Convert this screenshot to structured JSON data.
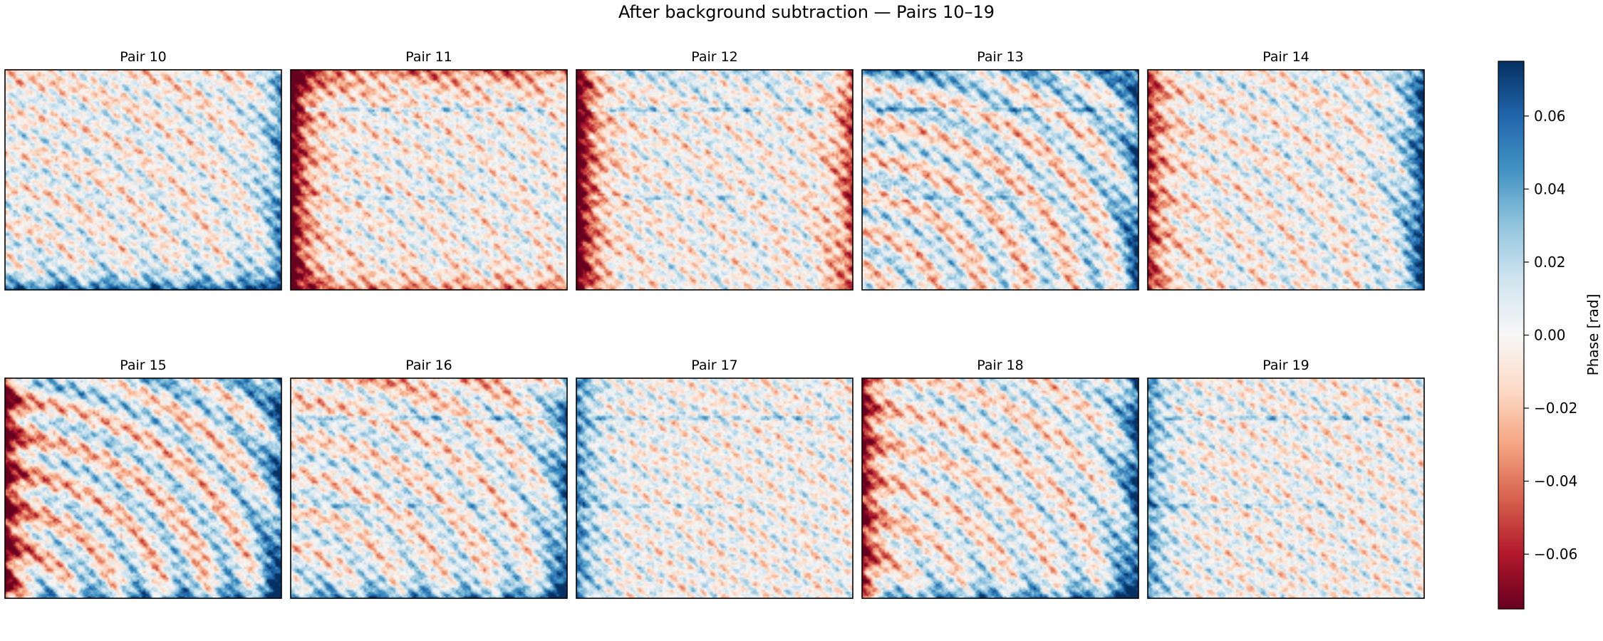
{
  "figure": {
    "title": "After background subtraction — Pairs 10–19"
  },
  "chart_data": {
    "type": "heatmap",
    "title": "After background subtraction — Pairs 10–19",
    "grid": false,
    "layout": "2 rows x 5 columns",
    "colormap": {
      "name": "RdBu",
      "low_color": "#67001f",
      "mid_color": "#f7f7f7",
      "high_color": "#053061"
    },
    "colorbar": {
      "label": "Phase [rad]",
      "range": [
        -0.075,
        0.075
      ],
      "ticks": [
        0.06,
        0.04,
        0.02,
        0.0,
        -0.02,
        -0.04,
        -0.06
      ],
      "tick_labels": [
        "0.06",
        "0.04",
        "0.02",
        "0.00",
        "−0.02",
        "−0.04",
        "−0.06"
      ]
    },
    "panels": [
      {
        "title": "Pair 10",
        "left_edge": 0.0,
        "top_edge": -0.01,
        "right_edge": 0.045,
        "bottom_edge": 0.06,
        "tilt": 0.02,
        "stripes": false
      },
      {
        "title": "Pair 11",
        "left_edge": -0.09,
        "top_edge": -0.04,
        "right_edge": 0.0,
        "bottom_edge": -0.035,
        "tilt": 0.015,
        "stripes": true
      },
      {
        "title": "Pair 12",
        "left_edge": -0.1,
        "top_edge": 0.015,
        "right_edge": -0.055,
        "bottom_edge": 0.0,
        "tilt": 0.015,
        "stripes": true
      },
      {
        "title": "Pair 13",
        "left_edge": 0.0,
        "top_edge": 0.03,
        "right_edge": 0.055,
        "bottom_edge": 0.0,
        "tilt": 0.04,
        "stripes": true
      },
      {
        "title": "Pair 14",
        "left_edge": -0.06,
        "top_edge": 0.0,
        "right_edge": 0.075,
        "bottom_edge": 0.0,
        "tilt": 0.02,
        "stripes": false
      },
      {
        "title": "Pair 15",
        "left_edge": -0.085,
        "top_edge": 0.02,
        "right_edge": 0.06,
        "bottom_edge": 0.04,
        "tilt": 0.045,
        "stripes": false
      },
      {
        "title": "Pair 16",
        "left_edge": 0.0,
        "top_edge": -0.02,
        "right_edge": 0.055,
        "bottom_edge": 0.045,
        "tilt": 0.03,
        "stripes": true
      },
      {
        "title": "Pair 17",
        "left_edge": 0.05,
        "top_edge": 0.0,
        "right_edge": 0.0,
        "bottom_edge": 0.0,
        "tilt": 0.01,
        "stripes": true
      },
      {
        "title": "Pair 18",
        "left_edge": -0.075,
        "top_edge": 0.0,
        "right_edge": 0.07,
        "bottom_edge": 0.045,
        "tilt": 0.03,
        "stripes": false
      },
      {
        "title": "Pair 19",
        "left_edge": 0.045,
        "top_edge": 0.0,
        "right_edge": 0.0,
        "bottom_edge": 0.0,
        "tilt": 0.012,
        "stripes": true
      }
    ]
  }
}
